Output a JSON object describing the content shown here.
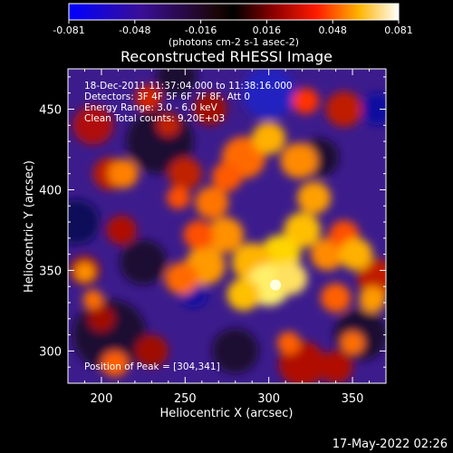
{
  "chart_data": {
    "type": "heatmap",
    "title": "Reconstructed RHESSI Image",
    "xlabel": "Heliocentric X (arcsec)",
    "ylabel": "Heliocentric Y (arcsec)",
    "xlim": [
      180,
      370
    ],
    "ylim": [
      280,
      475
    ],
    "x_ticks": [
      200,
      250,
      300,
      350
    ],
    "y_ticks": [
      300,
      350,
      400,
      450
    ],
    "info_lines": [
      "18-Dec-2011 11:37:04.000 to 11:38:16.000",
      "Detectors: 3F 4F 5F 6F 7F 8F, Att 0",
      "Energy Range: 3.0 - 6.0 keV",
      "Clean     Total counts: 9.20E+03"
    ],
    "peak_label": "Position of Peak = [304,341]",
    "peak": [
      304,
      341
    ],
    "colorbar": {
      "min": -0.081,
      "max": 0.081,
      "ticks": [
        "-0.081",
        "-0.048",
        "-0.016",
        "0.016",
        "0.048",
        "0.081"
      ],
      "unit_label": "(photons cm-2 s-1 asec-2)"
    },
    "grid": false
  },
  "footer": {
    "timestamp": "17-May-2022 02:26"
  }
}
